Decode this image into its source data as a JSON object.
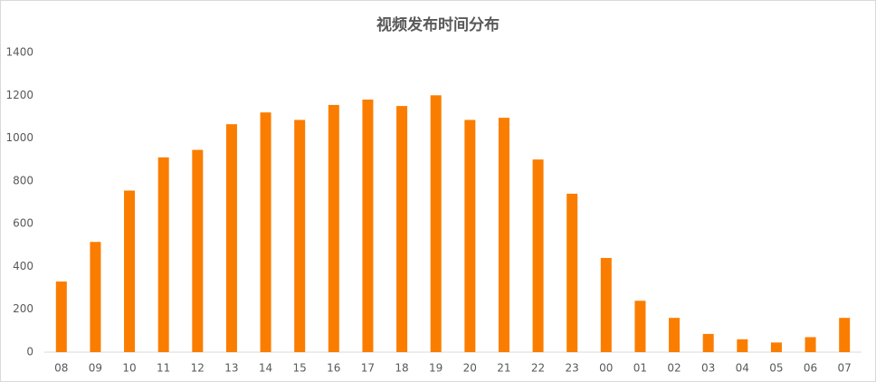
{
  "chart_data": {
    "type": "bar",
    "title": "视频发布时间分布",
    "categories": [
      "08",
      "09",
      "10",
      "11",
      "12",
      "13",
      "14",
      "15",
      "16",
      "17",
      "18",
      "19",
      "20",
      "21",
      "22",
      "23",
      "00",
      "01",
      "02",
      "03",
      "04",
      "05",
      "06",
      "07"
    ],
    "values": [
      330,
      515,
      755,
      910,
      945,
      1065,
      1120,
      1085,
      1155,
      1180,
      1150,
      1200,
      1085,
      1095,
      900,
      740,
      440,
      240,
      160,
      85,
      60,
      45,
      70,
      160
    ],
    "color": "#fa7d00",
    "ylim": [
      0,
      1400
    ],
    "yticks": [
      0,
      200,
      400,
      600,
      800,
      1000,
      1200,
      1400
    ],
    "grid": false
  }
}
